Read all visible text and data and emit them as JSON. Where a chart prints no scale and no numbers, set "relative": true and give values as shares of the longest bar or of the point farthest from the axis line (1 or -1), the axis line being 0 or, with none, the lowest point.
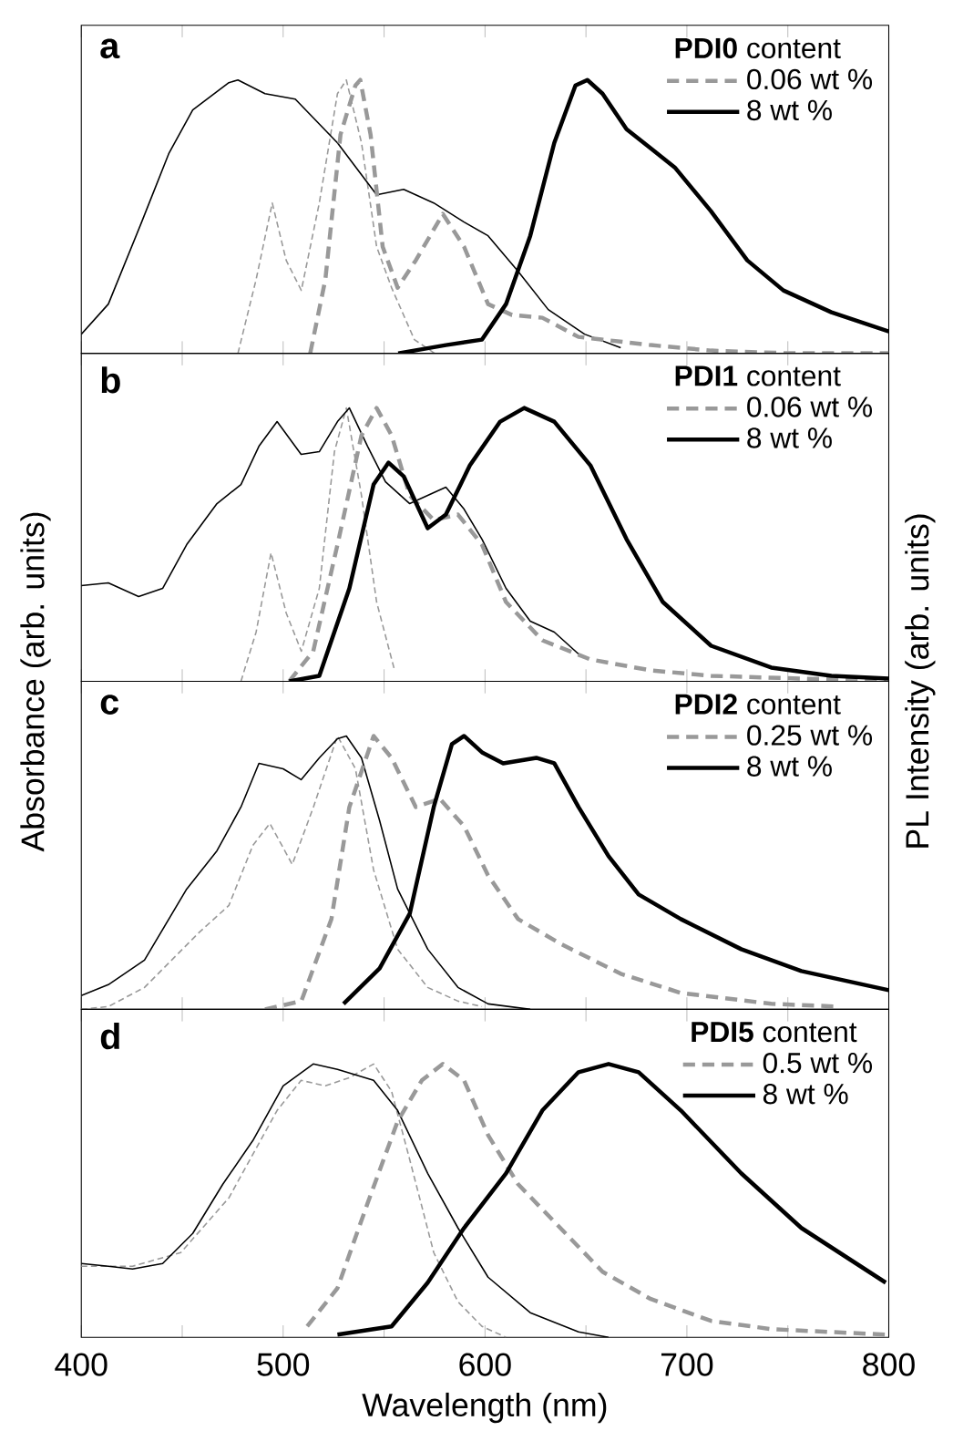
{
  "chart_data": [
    {
      "type": "line",
      "relative": true,
      "xlim": [
        400,
        800
      ],
      "xticks": [
        400,
        {
          "value": 450,
          "label": null
        },
        500,
        {
          "value": 550,
          "label": null
        },
        600,
        {
          "value": 650,
          "label": null
        },
        700,
        {
          "value": 750,
          "label": null
        },
        800
      ],
      "tick_labels": false,
      "legend": "top right",
      "legend_title": "**PDI0** content",
      "annotations": [
        "a"
      ],
      "series": [
        {
          "color": "#999999",
          "line_style": "dashed",
          "x": [
            477.6,
            486.6,
            494.6,
            501.5,
            509,
            517.9,
            526.9,
            531.3,
            538.8,
            546.3,
            553.7,
            565,
            575
          ],
          "values": [
            0,
            0.27,
            0.55,
            0.34,
            0.23,
            0.55,
            0.95,
            1.0,
            0.77,
            0.39,
            0.24,
            0.05,
            0
          ]
        },
        {
          "color": "#000000",
          "line_style": "solid",
          "x": [
            400,
            413.4,
            429.9,
            443.3,
            455.2,
            473.1,
            477.6,
            491,
            506,
            526.9,
            546.3,
            559.7,
            574.6,
            589.6,
            601.5,
            616.4,
            631.3,
            649.3,
            667.2
          ],
          "values": [
            0.07,
            0.18,
            0.48,
            0.73,
            0.89,
            0.99,
            1.0,
            0.95,
            0.93,
            0.77,
            0.58,
            0.6,
            0.55,
            0.48,
            0.43,
            0.3,
            0.16,
            0.07,
            0.02
          ]
        },
        {
          "name": "0.06 wt %",
          "axis": "y2",
          "color": "#999999",
          "line_style": "dashed",
          "x": [
            513.4,
            520.9,
            528.4,
            535.8,
            538.2,
            543.3,
            549.3,
            556.7,
            565.7,
            579.1,
            589.6,
            601.5,
            613.4,
            628.4,
            646.3,
            682.1,
            712,
            750.7,
            800
          ],
          "values": [
            0,
            0.27,
            0.8,
            0.98,
            1.0,
            0.8,
            0.39,
            0.24,
            0.34,
            0.51,
            0.39,
            0.18,
            0.14,
            0.13,
            0.06,
            0.03,
            0.01,
            0,
            0
          ]
        },
        {
          "name": "8 wt %",
          "axis": "y2",
          "color": "#000000",
          "line_style": "solid",
          "x": [
            557,
            580.6,
            598.5,
            610.4,
            622.4,
            634.3,
            644.8,
            650.7,
            658.2,
            670.1,
            682.1,
            694,
            711.9,
            729.9,
            747.8,
            771.6,
            800
          ],
          "values": [
            0,
            0.03,
            0.05,
            0.18,
            0.43,
            0.77,
            0.98,
            1.0,
            0.95,
            0.82,
            0.75,
            0.68,
            0.52,
            0.34,
            0.23,
            0.15,
            0.08
          ]
        }
      ]
    },
    {
      "type": "line",
      "relative": true,
      "xlim": [
        400,
        800
      ],
      "xticks": [
        400,
        {
          "value": 450,
          "label": null
        },
        500,
        {
          "value": 550,
          "label": null
        },
        600,
        {
          "value": 650,
          "label": null
        },
        700,
        {
          "value": 750,
          "label": null
        },
        800
      ],
      "tick_labels": false,
      "legend": "top right",
      "legend_title": "**PDI1** content",
      "annotations": [
        "b"
      ],
      "ylabel": "Absorbance (arb. units)",
      "y2label": "PL Intensity (arb. units)",
      "series": [
        {
          "color": "#999999",
          "line_style": "dashed",
          "x": [
            479.1,
            486.6,
            494,
            501.5,
            509,
            517.9,
            525.4,
            531.3,
            538.8,
            546.3,
            555.2
          ],
          "values": [
            0,
            0.18,
            0.47,
            0.25,
            0.11,
            0.34,
            0.84,
            1.0,
            0.68,
            0.29,
            0.04
          ]
        },
        {
          "color": "#000000",
          "line_style": "solid",
          "x": [
            400,
            413.4,
            428.4,
            440.3,
            452.2,
            467.2,
            479.1,
            488,
            497,
            508.9,
            517.9,
            526.9,
            532.8,
            541.8,
            550.7,
            562.7,
            574.6,
            580.6,
            589.6,
            598.5,
            610.4,
            622.4,
            634.3,
            646.3
          ],
          "values": [
            0.35,
            0.36,
            0.31,
            0.34,
            0.5,
            0.65,
            0.72,
            0.86,
            0.95,
            0.83,
            0.84,
            0.95,
            1.0,
            0.86,
            0.73,
            0.65,
            0.69,
            0.71,
            0.63,
            0.52,
            0.34,
            0.22,
            0.18,
            0.1
          ]
        },
        {
          "name": "0.06 wt %",
          "axis": "y2",
          "color": "#999999",
          "line_style": "dashed",
          "x": [
            503,
            514.9,
            526.9,
            538.8,
            546.3,
            553.7,
            562.7,
            574.6,
            586.6,
            598.5,
            610.4,
            628.4,
            652.2,
            682.1,
            712,
            756.7,
            798.5
          ],
          "values": [
            0,
            0.11,
            0.5,
            0.9,
            1.0,
            0.9,
            0.68,
            0.59,
            0.61,
            0.5,
            0.29,
            0.15,
            0.08,
            0.04,
            0.02,
            0.01,
            0
          ]
        },
        {
          "name": "8 wt %",
          "axis": "y2",
          "color": "#000000",
          "line_style": "solid",
          "x": [
            503,
            517.9,
            532.8,
            544.8,
            552.2,
            559.7,
            571.6,
            580.6,
            592.5,
            607.5,
            619.4,
            634.3,
            652.2,
            670.1,
            688.1,
            712,
            741.8,
            771.6,
            800
          ],
          "values": [
            0,
            0.02,
            0.34,
            0.72,
            0.8,
            0.75,
            0.56,
            0.61,
            0.79,
            0.95,
            1.0,
            0.95,
            0.79,
            0.52,
            0.29,
            0.13,
            0.05,
            0.02,
            0.01
          ]
        }
      ]
    },
    {
      "type": "line",
      "relative": true,
      "xlim": [
        400,
        800
      ],
      "xticks": [
        400,
        {
          "value": 450,
          "label": null
        },
        500,
        {
          "value": 550,
          "label": null
        },
        600,
        {
          "value": 650,
          "label": null
        },
        700,
        {
          "value": 750,
          "label": null
        },
        800
      ],
      "tick_labels": false,
      "legend": "top right",
      "legend_title": "**PDI2** content",
      "annotations": [
        "c"
      ],
      "series": [
        {
          "color": "#999999",
          "line_style": "dashed",
          "x": [
            400,
            413.4,
            431.3,
            458.2,
            473.1,
            485,
            493.4,
            504.5,
            515,
            526.9,
            535.8,
            544.8,
            556.7,
            571.6,
            586.6,
            598.5
          ],
          "values": [
            0,
            0.01,
            0.08,
            0.28,
            0.38,
            0.6,
            0.68,
            0.53,
            0.74,
            1.0,
            0.88,
            0.51,
            0.22,
            0.08,
            0.03,
            0.01
          ]
        },
        {
          "color": "#000000",
          "line_style": "solid",
          "x": [
            400,
            413.4,
            431.3,
            452.2,
            467.2,
            479.1,
            488,
            500,
            508.9,
            517.9,
            526.9,
            531.3,
            538.8,
            547.8,
            556.7,
            571.6,
            586.6,
            601.5,
            622.4
          ],
          "values": [
            0.05,
            0.09,
            0.18,
            0.44,
            0.58,
            0.74,
            0.9,
            0.88,
            0.84,
            0.92,
            0.99,
            1.0,
            0.92,
            0.69,
            0.44,
            0.22,
            0.08,
            0.02,
            0
          ]
        },
        {
          "name": "0.25 wt %",
          "axis": "y2",
          "color": "#999999",
          "line_style": "dashed",
          "x": [
            491,
            509,
            523.9,
            532.8,
            544.8,
            553.7,
            565.7,
            577.6,
            589.6,
            601.5,
            616.4,
            637.3,
            667.2,
            697,
            741.8,
            774.6
          ],
          "values": [
            0,
            0.03,
            0.33,
            0.74,
            1.0,
            0.92,
            0.74,
            0.77,
            0.67,
            0.49,
            0.33,
            0.24,
            0.13,
            0.06,
            0.02,
            0.01
          ]
        },
        {
          "name": "8 wt %",
          "axis": "y2",
          "color": "#000000",
          "line_style": "solid",
          "x": [
            529.9,
            547.8,
            562.7,
            574.6,
            583.6,
            589.6,
            598.5,
            609,
            625.4,
            634.3,
            646.3,
            661.2,
            676.1,
            697,
            726.9,
            756.7,
            800
          ],
          "values": [
            0.02,
            0.15,
            0.35,
            0.74,
            0.97,
            1.0,
            0.94,
            0.9,
            0.92,
            0.9,
            0.74,
            0.56,
            0.42,
            0.33,
            0.22,
            0.14,
            0.07
          ]
        }
      ]
    },
    {
      "type": "line",
      "relative": true,
      "xlim": [
        400,
        800
      ],
      "xticks": [
        400,
        {
          "value": 450,
          "label": null
        },
        500,
        {
          "value": 550,
          "label": null
        },
        600,
        {
          "value": 650,
          "label": null
        },
        700,
        {
          "value": 750,
          "label": null
        },
        800
      ],
      "tick_labels": "x",
      "xlabel": "Wavelength (nm)",
      "legend": "top right",
      "legend_title": "**PDI5** content",
      "annotations": [
        "d"
      ],
      "series": [
        {
          "color": "#999999",
          "line_style": "dashed",
          "x": [
            400,
            425.4,
            449.3,
            473.1,
            497,
            508.9,
            520.9,
            532.8,
            544.8,
            553.7,
            562.7,
            574.6,
            586.6,
            598.5,
            610.4
          ],
          "values": [
            0.26,
            0.26,
            0.31,
            0.51,
            0.83,
            0.94,
            0.92,
            0.95,
            1.0,
            0.9,
            0.65,
            0.31,
            0.13,
            0.04,
            0
          ]
        },
        {
          "color": "#000000",
          "line_style": "solid",
          "x": [
            400,
            413.4,
            425.4,
            440.3,
            455.2,
            470.1,
            485,
            500,
            514.9,
            526.9,
            544.8,
            556.7,
            571.6,
            586.6,
            601.5,
            622.4,
            646.3,
            661.2
          ],
          "values": [
            0.27,
            0.26,
            0.25,
            0.27,
            0.38,
            0.56,
            0.72,
            0.92,
            1.0,
            0.98,
            0.94,
            0.83,
            0.6,
            0.4,
            0.22,
            0.09,
            0.02,
            0
          ]
        },
        {
          "name": "0.5 wt %",
          "axis": "y2",
          "color": "#999999",
          "line_style": "dashed",
          "x": [
            511.9,
            526.9,
            541.8,
            556.7,
            568.7,
            579.1,
            589.6,
            601.5,
            616.4,
            637.3,
            658.2,
            682.1,
            712,
            741.8,
            798.5
          ],
          "values": [
            0.04,
            0.18,
            0.49,
            0.79,
            0.94,
            1.0,
            0.94,
            0.74,
            0.56,
            0.4,
            0.24,
            0.14,
            0.06,
            0.03,
            0.01
          ]
        },
        {
          "name": "8 wt %",
          "axis": "y2",
          "color": "#000000",
          "line_style": "solid",
          "x": [
            526.9,
            553.7,
            571.6,
            589.6,
            610.4,
            628.4,
            646.3,
            661.2,
            676.1,
            697,
            726.9,
            756.7,
            798.5
          ],
          "values": [
            0.01,
            0.04,
            0.2,
            0.4,
            0.6,
            0.83,
            0.97,
            1.0,
            0.97,
            0.83,
            0.6,
            0.4,
            0.2
          ]
        }
      ]
    }
  ]
}
